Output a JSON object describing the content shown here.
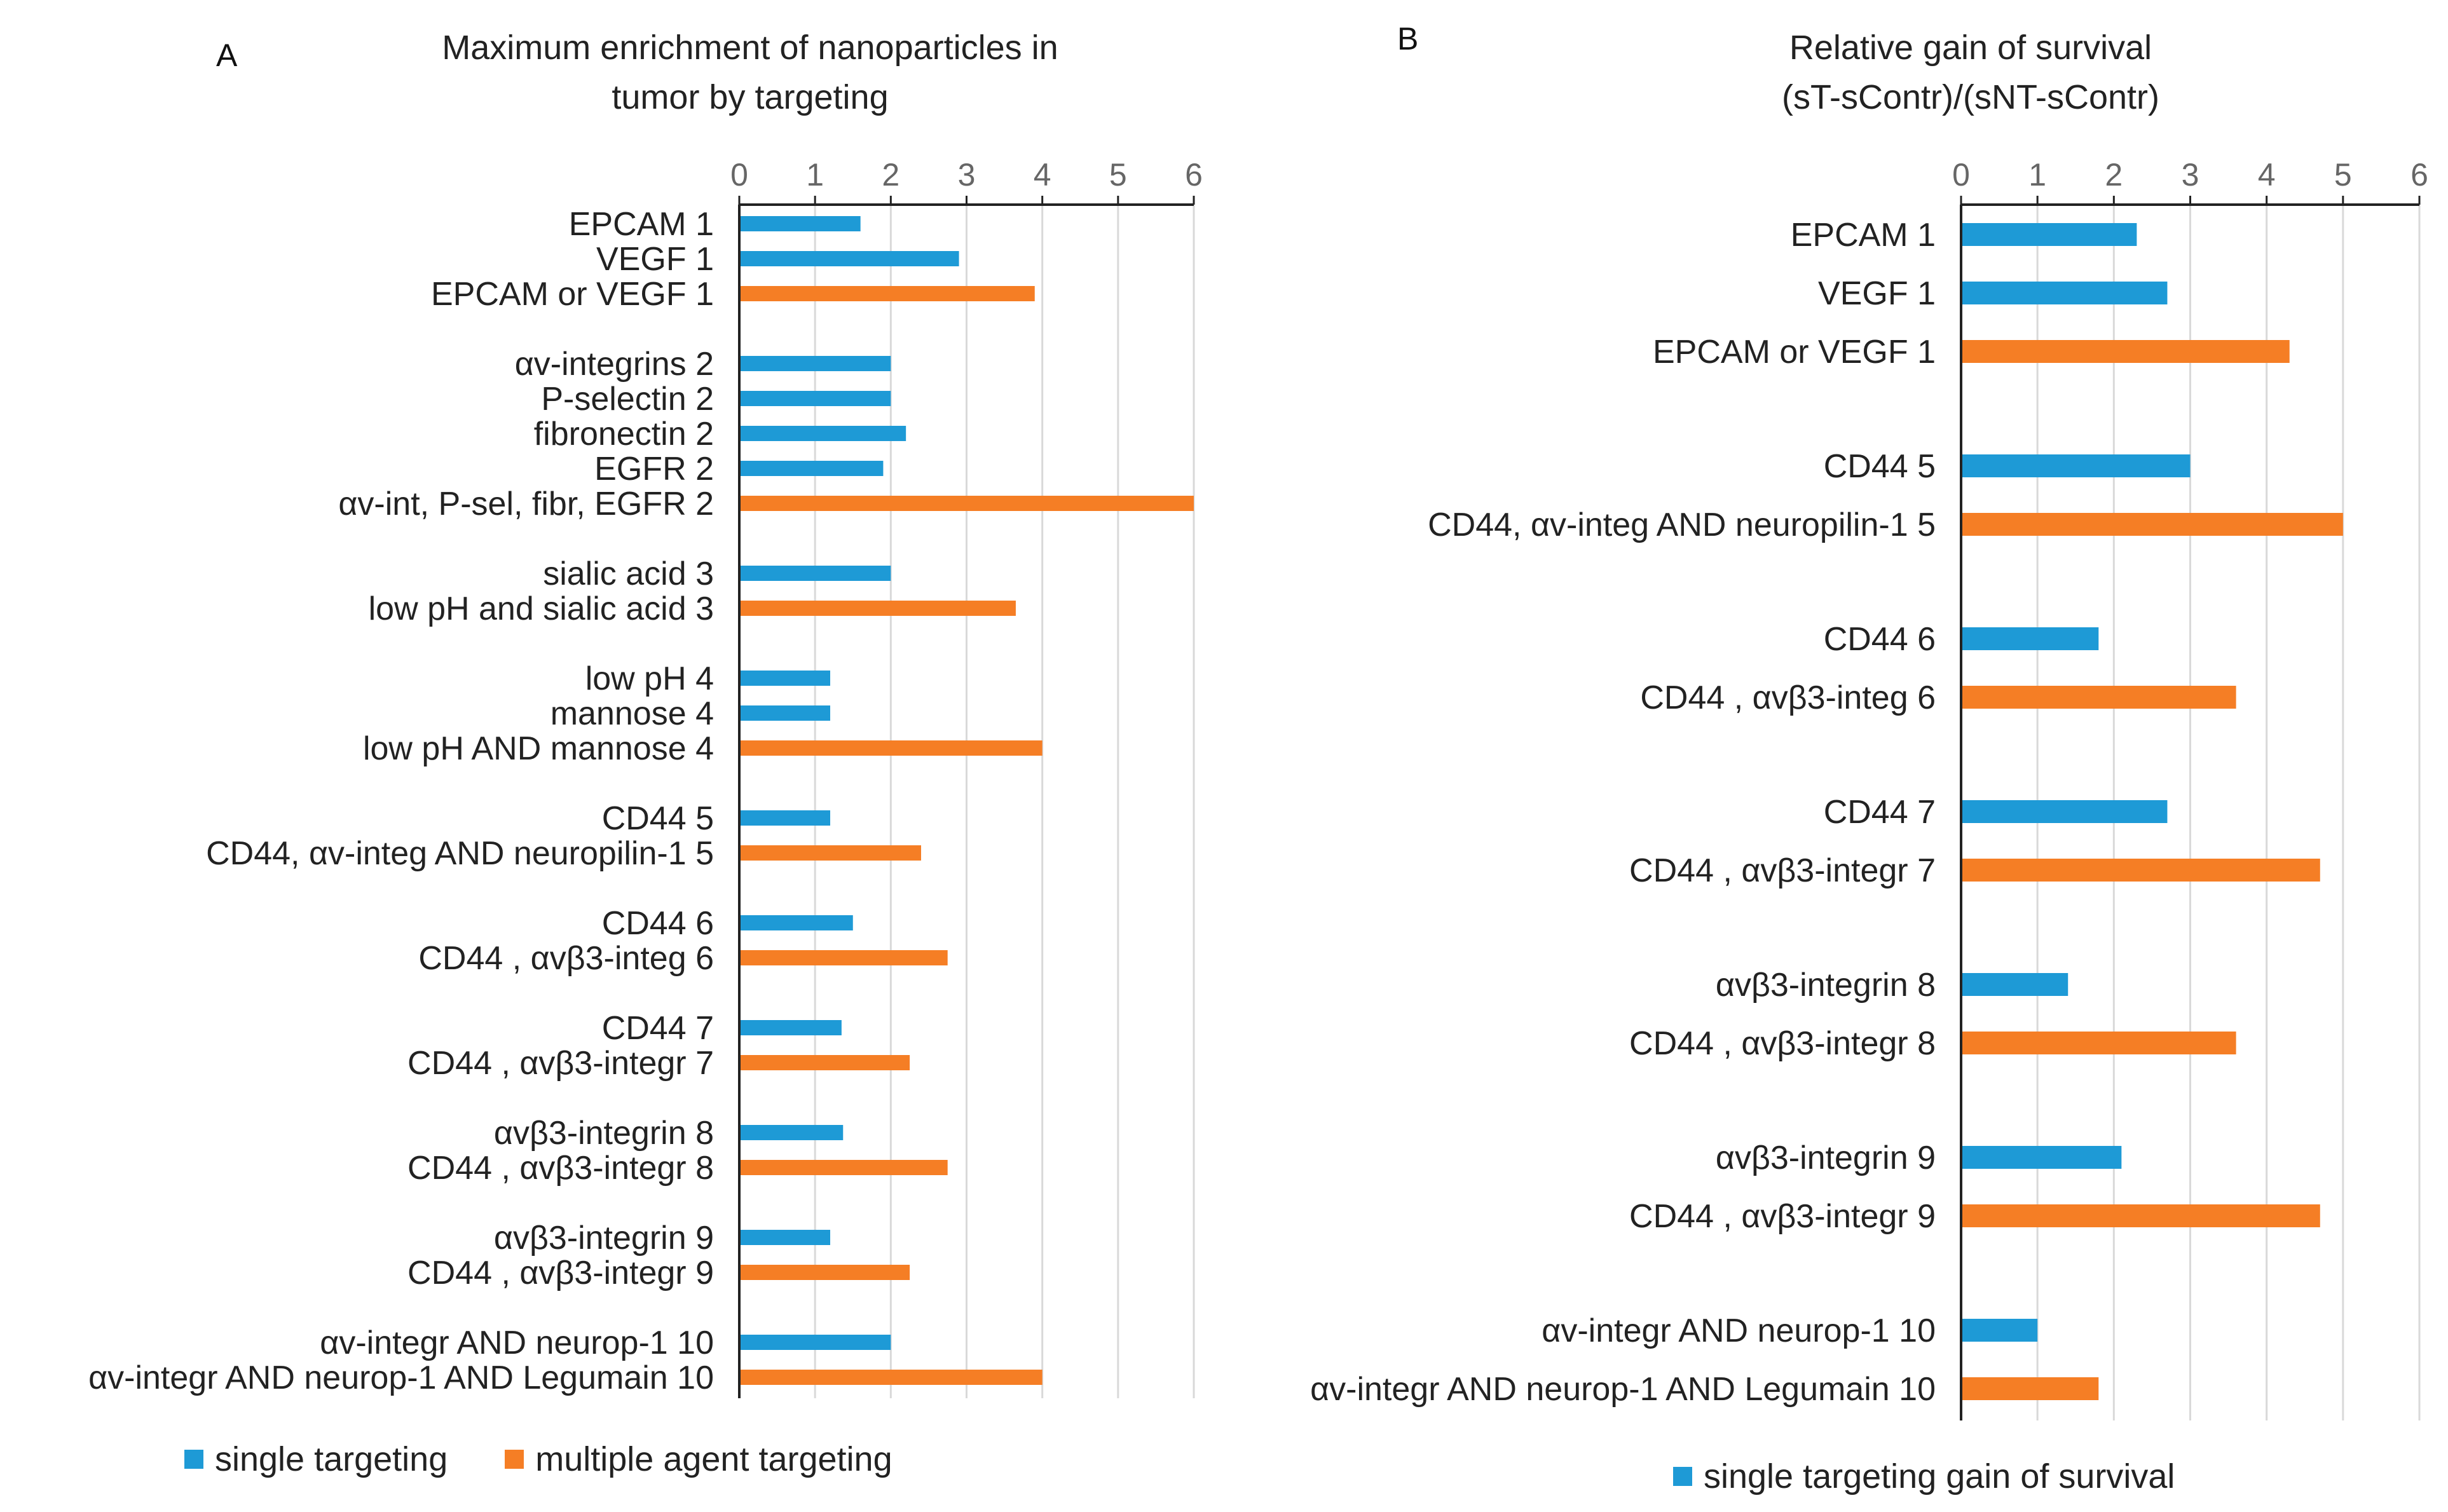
{
  "panels": {
    "A": {
      "letter": "A"
    },
    "B": {
      "letter": "B"
    }
  },
  "colors": {
    "single": "#1e9ad6",
    "multiple": "#f57e25",
    "axis": "#222222",
    "grid": "#d9d9d9"
  },
  "chart_data": [
    {
      "type": "bar",
      "orientation": "horizontal",
      "title_lines": [
        "Maximum enrichment of nanoparticles in",
        "tumor by targeting"
      ],
      "xlim": [
        0,
        6
      ],
      "ticks": [
        "0",
        "1",
        "2",
        "3",
        "4",
        "5",
        "6"
      ],
      "grid": true,
      "legend_position": "bottom",
      "legend": [
        {
          "name": "single targeting",
          "kind": "single"
        },
        {
          "name": "multiple agent targeting",
          "kind": "multiple"
        }
      ],
      "groups": [
        {
          "bars": [
            {
              "label": "EPCAM 1",
              "value": 1.6,
              "kind": "single"
            },
            {
              "label": "VEGF 1",
              "value": 2.9,
              "kind": "single"
            },
            {
              "label": "EPCAM or VEGF 1",
              "value": 3.9,
              "kind": "multiple"
            }
          ]
        },
        {
          "bars": [
            {
              "label": "αv-integrins 2",
              "value": 2.0,
              "kind": "single"
            },
            {
              "label": "P-selectin 2",
              "value": 2.0,
              "kind": "single"
            },
            {
              "label": "fibronectin 2",
              "value": 2.2,
              "kind": "single"
            },
            {
              "label": "EGFR 2",
              "value": 1.9,
              "kind": "single"
            },
            {
              "label": "αv-int, P-sel, fibr, EGFR 2",
              "value": 6.0,
              "kind": "multiple"
            }
          ]
        },
        {
          "bars": [
            {
              "label": "sialic acid  3",
              "value": 2.0,
              "kind": "single"
            },
            {
              "label": "low pH and sialic acid  3",
              "value": 3.65,
              "kind": "multiple"
            }
          ]
        },
        {
          "bars": [
            {
              "label": "low pH 4",
              "value": 1.2,
              "kind": "single"
            },
            {
              "label": "mannose 4",
              "value": 1.2,
              "kind": "single"
            },
            {
              "label": "low pH AND mannose 4",
              "value": 4.0,
              "kind": "multiple"
            }
          ]
        },
        {
          "bars": [
            {
              "label": "CD44 5",
              "value": 1.2,
              "kind": "single"
            },
            {
              "label": "CD44, αv-integ AND neuropilin-1 5",
              "value": 2.4,
              "kind": "multiple"
            }
          ]
        },
        {
          "bars": [
            {
              "label": "CD44 6",
              "value": 1.5,
              "kind": "single"
            },
            {
              "label": "CD44 , αvβ3-integ 6",
              "value": 2.75,
              "kind": "multiple"
            }
          ]
        },
        {
          "bars": [
            {
              "label": "CD44 7",
              "value": 1.35,
              "kind": "single"
            },
            {
              "label": "CD44 , αvβ3-integr 7",
              "value": 2.25,
              "kind": "multiple"
            }
          ]
        },
        {
          "bars": [
            {
              "label": "αvβ3-integrin 8",
              "value": 1.37,
              "kind": "single"
            },
            {
              "label": "CD44 , αvβ3-integr 8",
              "value": 2.75,
              "kind": "multiple"
            }
          ]
        },
        {
          "bars": [
            {
              "label": "αvβ3-integrin 9",
              "value": 1.2,
              "kind": "single"
            },
            {
              "label": "CD44 , αvβ3-integr 9",
              "value": 2.25,
              "kind": "multiple"
            }
          ]
        },
        {
          "bars": [
            {
              "label": "αv-integr AND neurop-1 10",
              "value": 2.0,
              "kind": "single"
            },
            {
              "label": "αv-integr AND neurop-1 AND Legumain 10",
              "value": 4.0,
              "kind": "multiple"
            }
          ]
        }
      ]
    },
    {
      "type": "bar",
      "orientation": "horizontal",
      "title_lines": [
        "Relative gain of survival",
        "(sT-sContr)/(sNT-sContr)"
      ],
      "xlim": [
        0,
        6
      ],
      "ticks": [
        "0",
        "1",
        "2",
        "3",
        "4",
        "5",
        "6"
      ],
      "grid": true,
      "legend_position": "bottom",
      "legend": [
        {
          "name": "single targeting gain of survival",
          "kind": "single"
        }
      ],
      "groups": [
        {
          "bars": [
            {
              "label": "EPCAM 1",
              "value": 2.3,
              "kind": "single"
            },
            {
              "label": "VEGF 1",
              "value": 2.7,
              "kind": "single"
            },
            {
              "label": "EPCAM or VEGF 1",
              "value": 4.3,
              "kind": "multiple"
            }
          ]
        },
        {
          "bars": [
            {
              "label": "CD44 5",
              "value": 3.0,
              "kind": "single"
            },
            {
              "label": "CD44, αv-integ AND neuropilin-1 5",
              "value": 5.0,
              "kind": "multiple"
            }
          ]
        },
        {
          "bars": [
            {
              "label": "CD44 6",
              "value": 1.8,
              "kind": "single"
            },
            {
              "label": "CD44 , αvβ3-integ 6",
              "value": 3.6,
              "kind": "multiple"
            }
          ]
        },
        {
          "bars": [
            {
              "label": "CD44 7",
              "value": 2.7,
              "kind": "single"
            },
            {
              "label": "CD44 , αvβ3-integr 7",
              "value": 4.7,
              "kind": "multiple"
            }
          ]
        },
        {
          "bars": [
            {
              "label": "αvβ3-integrin 8",
              "value": 1.4,
              "kind": "single"
            },
            {
              "label": "CD44 , αvβ3-integr 8",
              "value": 3.6,
              "kind": "multiple"
            }
          ]
        },
        {
          "bars": [
            {
              "label": "αvβ3-integrin 9",
              "value": 2.1,
              "kind": "single"
            },
            {
              "label": "CD44 , αvβ3-integr 9",
              "value": 4.7,
              "kind": "multiple"
            }
          ]
        },
        {
          "bars": [
            {
              "label": "αv-integr AND neurop-1 10",
              "value": 1.0,
              "kind": "single"
            },
            {
              "label": "αv-integr AND neurop-1 AND Legumain 10",
              "value": 1.8,
              "kind": "multiple"
            }
          ]
        }
      ]
    }
  ]
}
